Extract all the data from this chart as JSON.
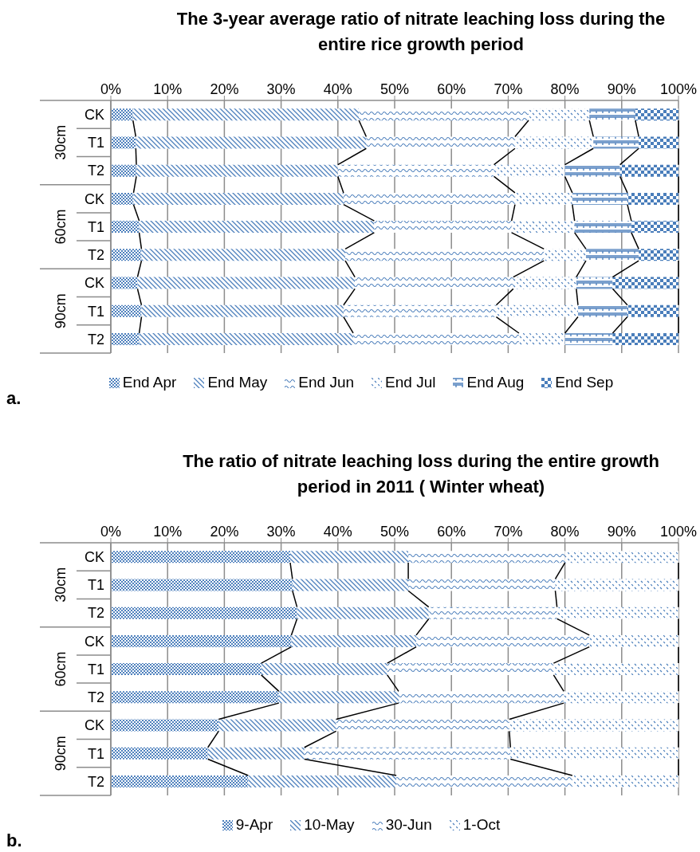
{
  "chart_data": [
    {
      "type": "bar",
      "orientation": "horizontal",
      "stacked": true,
      "title": "The 3-year average ratio of nitrate leaching loss during the entire rice growth period",
      "categories": [
        "CK",
        "T1",
        "T2",
        "CK",
        "T1",
        "T2",
        "CK",
        "T1",
        "T2"
      ],
      "series": [
        {
          "name": "End Apr",
          "color": "#4f81bd",
          "values": [
            3.9,
            4.4,
            4.5,
            4.0,
            5.0,
            5.4,
            4.7,
            5.4,
            5.0
          ]
        },
        {
          "name": "End May",
          "color": "#4f81bd",
          "values": [
            39.8,
            40.6,
            35.5,
            37.0,
            41.4,
            35.9,
            38.3,
            35.6,
            37.7
          ]
        },
        {
          "name": "End Jun",
          "color": "#4f81bd",
          "values": [
            29.9,
            26.2,
            27.5,
            30.2,
            24.2,
            35.0,
            27.9,
            26.9,
            29.2
          ]
        },
        {
          "name": "End Jul",
          "color": "#4f81bd",
          "values": [
            10.7,
            13.8,
            12.5,
            10.1,
            11.1,
            7.4,
            11.1,
            14.4,
            8.1
          ]
        },
        {
          "name": "End Aug",
          "color": "#4f81bd",
          "values": [
            8.1,
            8.0,
            9.7,
            9.7,
            10.0,
            9.3,
            6.4,
            8.7,
            8.4
          ]
        },
        {
          "name": "End Sep",
          "color": "#4a7ebb",
          "values": [
            7.6,
            7.0,
            10.3,
            9.0,
            8.3,
            7.0,
            11.6,
            9.0,
            11.6
          ]
        }
      ],
      "xlim": [
        0,
        100
      ],
      "xticks": [
        {
          "value": 0,
          "label": "0%"
        },
        {
          "value": 10,
          "label": "10%"
        },
        {
          "value": 20,
          "label": "20%"
        },
        {
          "value": 30,
          "label": "30%"
        },
        {
          "value": 40,
          "label": "40%"
        },
        {
          "value": 50,
          "label": "50%"
        },
        {
          "value": 60,
          "label": "60%"
        },
        {
          "value": 70,
          "label": "70%"
        },
        {
          "value": 80,
          "label": "80%"
        },
        {
          "value": 90,
          "label": "90%"
        },
        {
          "value": 100,
          "label": "100%"
        }
      ],
      "grid": "x",
      "legend": "bottom",
      "annotations": [
        "30cm",
        "60cm",
        "90cm",
        "a."
      ]
    },
    {
      "type": "bar",
      "orientation": "horizontal",
      "stacked": true,
      "title": "The ratio of nitrate leaching loss during the entire growth period in 2011 ( Winter wheat)",
      "categories": [
        "CK",
        "T1",
        "T2",
        "CK",
        "T1",
        "T2",
        "CK",
        "T1",
        "T2"
      ],
      "series": [
        {
          "name": "9-Apr",
          "color": "#4f81bd",
          "values": [
            31.6,
            32.0,
            32.8,
            31.8,
            26.5,
            29.6,
            19.0,
            17.1,
            24.2
          ]
        },
        {
          "name": "10-May",
          "color": "#4f81bd",
          "values": [
            20.8,
            20.4,
            23.2,
            22.0,
            22.2,
            21.1,
            20.7,
            17.0,
            26.1
          ]
        },
        {
          "name": "30-Jun",
          "color": "#4f81bd",
          "values": [
            27.6,
            25.9,
            22.6,
            30.5,
            29.3,
            29.1,
            30.5,
            36.3,
            31.0
          ]
        },
        {
          "name": "1-Oct",
          "color": "#4a7ebb",
          "values": [
            20.0,
            21.7,
            21.4,
            15.7,
            22.0,
            20.2,
            29.8,
            29.6,
            18.7
          ]
        }
      ],
      "xlim": [
        0,
        100
      ],
      "xticks": [
        {
          "value": 0,
          "label": "0%"
        },
        {
          "value": 10,
          "label": "10%"
        },
        {
          "value": 20,
          "label": "20%"
        },
        {
          "value": 30,
          "label": "30%"
        },
        {
          "value": 40,
          "label": "40%"
        },
        {
          "value": 50,
          "label": "50%"
        },
        {
          "value": 60,
          "label": "60%"
        },
        {
          "value": 70,
          "label": "70%"
        },
        {
          "value": 80,
          "label": "80%"
        },
        {
          "value": 90,
          "label": "90%"
        },
        {
          "value": 100,
          "label": "100%"
        }
      ],
      "grid": "x",
      "legend": "bottom",
      "annotations": [
        "30cm",
        "60cm",
        "90cm",
        "b."
      ]
    }
  ]
}
